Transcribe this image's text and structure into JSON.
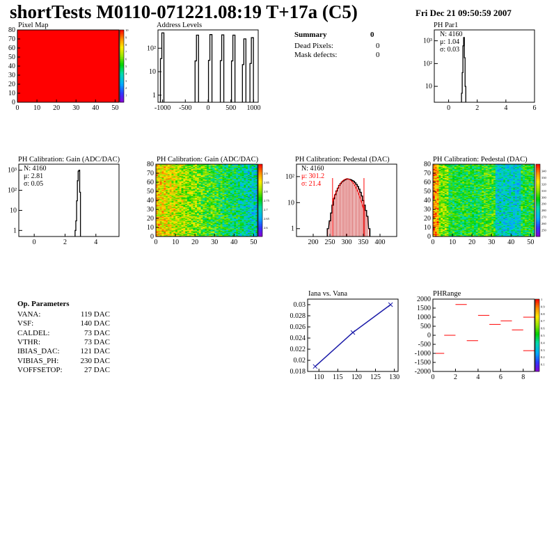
{
  "header": {
    "title": "shortTests M0110-071221.08:19 T+17a (C5)",
    "date": "Fri Dec 21 09:50:59 2007"
  },
  "summary": {
    "title": "Summary",
    "title_value": "0",
    "rows": [
      {
        "label": "Dead Pixels:",
        "value": "0"
      },
      {
        "label": "Mask defects:",
        "value": "0"
      }
    ]
  },
  "op_params": {
    "title": "Op. Parameters",
    "rows": [
      {
        "name": "VANA:",
        "value": "119 DAC"
      },
      {
        "name": "VSF:",
        "value": "140 DAC"
      },
      {
        "name": "CALDEL:",
        "value": "73 DAC"
      },
      {
        "name": "VTHR:",
        "value": "73 DAC"
      },
      {
        "name": "IBIAS_DAC:",
        "value": "121 DAC"
      },
      {
        "name": "VIBIAS_PH:",
        "value": "230 DAC"
      },
      {
        "name": "VOFFSETOP:",
        "value": "27 DAC"
      }
    ]
  },
  "colors": {
    "frame": "#000000",
    "fit_red": "#ff0000",
    "line_blue": "#1a1aa8"
  },
  "chart_data": [
    {
      "id": "pixel_map",
      "type": "heatmap",
      "title": "Pixel Map",
      "xlim": [
        0,
        52
      ],
      "ylim": [
        0,
        80
      ],
      "xticks": [
        "0",
        "10",
        "20",
        "30",
        "40",
        "50"
      ],
      "yticks": [
        "0",
        "10",
        "20",
        "30",
        "40",
        "50",
        "60",
        "70",
        "80"
      ],
      "fill": "uniform",
      "uniform_value": 10,
      "colorbar": {
        "min": 0,
        "max": 10,
        "ticks": [
          "1",
          "2",
          "3",
          "4",
          "5",
          "6",
          "7",
          "8",
          "9",
          "10"
        ]
      }
    },
    {
      "id": "address_levels",
      "type": "bar",
      "title": "Address Levels",
      "log_y": true,
      "xlim": [
        -1100,
        1100
      ],
      "ylim": [
        0.5,
        600
      ],
      "xticks": [
        "-1000",
        "-500",
        "0",
        "500",
        "1000"
      ],
      "yticks": [
        "1",
        "10",
        "10²"
      ],
      "peaks": [
        {
          "x": -970,
          "y": 450
        },
        {
          "x": -210,
          "y": 360
        },
        {
          "x": 85,
          "y": 380
        },
        {
          "x": 345,
          "y": 370
        },
        {
          "x": 590,
          "y": 360
        },
        {
          "x": 830,
          "y": 250
        },
        {
          "x": 995,
          "y": 280
        }
      ]
    },
    {
      "id": "ph_par1",
      "type": "bar",
      "title": "PH Par1",
      "log_y": true,
      "xlim": [
        -1,
        6
      ],
      "ylim": [
        2,
        3000
      ],
      "xticks": [
        "0",
        "2",
        "4",
        "6"
      ],
      "yticks": [
        "10",
        "10²",
        "10³"
      ],
      "stats": [
        "N: 4160",
        "μ: 1.04",
        "σ: 0.03"
      ],
      "bins": [
        [
          0.9,
          5
        ],
        [
          0.95,
          40
        ],
        [
          1.0,
          600
        ],
        [
          1.05,
          1400
        ],
        [
          1.1,
          180
        ],
        [
          1.15,
          10
        ]
      ]
    },
    {
      "id": "ph_gain_hist",
      "type": "bar",
      "title": "PH Calibration: Gain (ADC/DAC)",
      "log_y": true,
      "xlim": [
        -1,
        5.5
      ],
      "ylim": [
        0.5,
        2000
      ],
      "xticks": [
        "0",
        "2",
        "4"
      ],
      "yticks": [
        "1",
        "10",
        "10²",
        "10³"
      ],
      "stats": [
        "N: 4160",
        "μ: 2.81",
        "σ: 0.05"
      ],
      "bins": [
        [
          2.65,
          1
        ],
        [
          2.7,
          3
        ],
        [
          2.75,
          30
        ],
        [
          2.8,
          300
        ],
        [
          2.85,
          900
        ],
        [
          2.9,
          1000
        ],
        [
          2.95,
          80
        ]
      ]
    },
    {
      "id": "ph_gain_map",
      "type": "heatmap",
      "title": "PH Calibration: Gain (ADC/DAC)",
      "xlim": [
        0,
        52
      ],
      "ylim": [
        0,
        80
      ],
      "xticks": [
        "0",
        "10",
        "20",
        "30",
        "40",
        "50"
      ],
      "yticks": [
        "0",
        "10",
        "20",
        "30",
        "40",
        "50",
        "60",
        "70",
        "80"
      ],
      "value_range": [
        2.55,
        2.95
      ],
      "colorbar": {
        "min": 2.55,
        "max": 2.95,
        "ticks": [
          "2.6",
          "2.65",
          "2.7",
          "2.75",
          "2.8",
          "2.85",
          "2.9"
        ]
      }
    },
    {
      "id": "ph_pedestal_hist",
      "type": "bar",
      "title": "PH Calibration: Pedestal (DAC)",
      "log_y": true,
      "xlim": [
        150,
        450
      ],
      "ylim": [
        0.5,
        300
      ],
      "xticks": [
        "200",
        "250",
        "300",
        "350",
        "400"
      ],
      "yticks": [
        "1",
        "10",
        "10²"
      ],
      "stats": [
        "N: 4160"
      ],
      "fit_stats": [
        "μ: 301.2",
        "σ: 21.4"
      ],
      "fit": {
        "mu": 301.2,
        "sigma": 21.4,
        "xmin": 258,
        "xmax": 352
      },
      "bins": [
        [
          242,
          1
        ],
        [
          248,
          2
        ],
        [
          252,
          4
        ],
        [
          256,
          8
        ],
        [
          260,
          14
        ],
        [
          264,
          20
        ],
        [
          268,
          28
        ],
        [
          272,
          36
        ],
        [
          276,
          46
        ],
        [
          280,
          54
        ],
        [
          284,
          62
        ],
        [
          288,
          68
        ],
        [
          292,
          74
        ],
        [
          296,
          78
        ],
        [
          300,
          82
        ],
        [
          304,
          80
        ],
        [
          308,
          78
        ],
        [
          312,
          75
        ],
        [
          316,
          70
        ],
        [
          320,
          66
        ],
        [
          324,
          58
        ],
        [
          328,
          50
        ],
        [
          332,
          42
        ],
        [
          336,
          33
        ],
        [
          340,
          25
        ],
        [
          344,
          18
        ],
        [
          348,
          12
        ],
        [
          352,
          8
        ],
        [
          356,
          5
        ],
        [
          360,
          3
        ],
        [
          366,
          1
        ]
      ]
    },
    {
      "id": "ph_pedestal_map",
      "type": "heatmap",
      "title": "PH Calibration: Pedestal (DAC)",
      "xlim": [
        0,
        52
      ],
      "ylim": [
        0,
        80
      ],
      "xticks": [
        "0",
        "10",
        "20",
        "30",
        "40",
        "50"
      ],
      "yticks": [
        "0",
        "10",
        "20",
        "30",
        "40",
        "50",
        "60",
        "70",
        "80"
      ],
      "value_range": [
        240,
        350
      ],
      "colorbar": {
        "min": 240,
        "max": 350,
        "ticks": [
          "250",
          "260",
          "270",
          "280",
          "290",
          "300",
          "310",
          "320",
          "330",
          "340"
        ]
      }
    },
    {
      "id": "iana_vs_vana",
      "type": "line",
      "title": "Iana vs. Vana",
      "xlim": [
        107,
        131
      ],
      "ylim": [
        0.018,
        0.031
      ],
      "xticks": [
        "110",
        "115",
        "120",
        "125",
        "130"
      ],
      "yticks": [
        "0.018",
        "0.02",
        "0.022",
        "0.024",
        "0.026",
        "0.028",
        "0.03"
      ],
      "x": [
        109,
        119,
        129
      ],
      "y": [
        0.0189,
        0.025,
        0.03
      ]
    },
    {
      "id": "ph_range",
      "type": "scatter",
      "title": "PHRange",
      "xlim": [
        0,
        9
      ],
      "ylim": [
        -2000,
        2000
      ],
      "xticks": [
        "0",
        "2",
        "4",
        "6",
        "8"
      ],
      "yticks": [
        "-2000",
        "-1500",
        "-1000",
        "-500",
        "0",
        "500",
        "1000",
        "1500",
        "2000"
      ],
      "segments": [
        [
          0,
          -1000
        ],
        [
          1,
          0
        ],
        [
          2,
          1700
        ],
        [
          3,
          -300
        ],
        [
          4,
          1100
        ],
        [
          5,
          600
        ],
        [
          6,
          800
        ],
        [
          7,
          300
        ],
        [
          8,
          1000
        ],
        [
          8,
          -850
        ]
      ],
      "colorbar": {
        "min": 0,
        "max": 1,
        "ticks": [
          "0.1",
          "0.2",
          "0.3",
          "0.4",
          "0.5",
          "0.6",
          "0.7",
          "0.8",
          "0.9",
          "1"
        ]
      }
    }
  ]
}
